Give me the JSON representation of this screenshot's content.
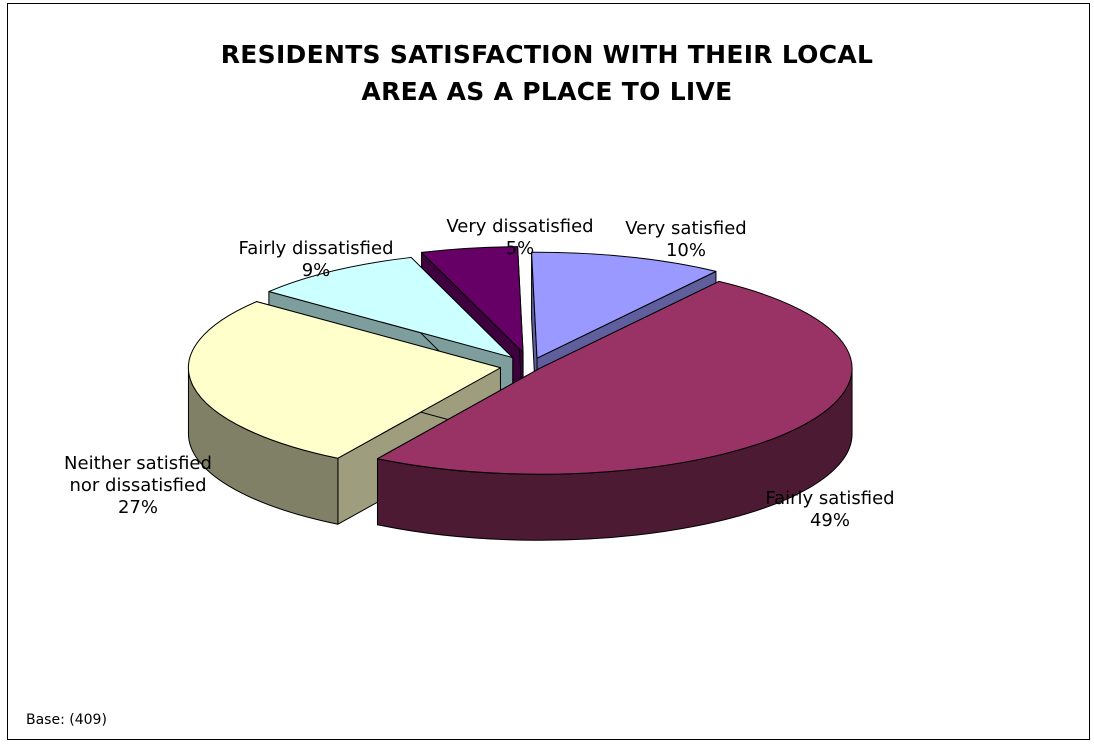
{
  "chart_data": {
    "type": "pie",
    "style": "3d-exploded",
    "title_lines": [
      "RESIDENTS SATISFACTION WITH THEIR LOCAL",
      "AREA AS A PLACE TO LIVE"
    ],
    "slices": [
      {
        "label_lines": [
          "Very satisfied"
        ],
        "value_label": "10%",
        "value": 10,
        "color": "#9999ff"
      },
      {
        "label_lines": [
          "Fairly satisfied"
        ],
        "value_label": "49%",
        "value": 49,
        "color": "#993366"
      },
      {
        "label_lines": [
          "Neither satisfied",
          "nor dissatisfied"
        ],
        "value_label": "27%",
        "value": 27,
        "color": "#ffffcc"
      },
      {
        "label_lines": [
          "Fairly dissatisfied"
        ],
        "value_label": "9%",
        "value": 9,
        "color": "#ccffff"
      },
      {
        "label_lines": [
          "Very dissatisfied"
        ],
        "value_label": "5%",
        "value": 5,
        "color": "#660066"
      }
    ],
    "footnote": "Base: (409)"
  }
}
